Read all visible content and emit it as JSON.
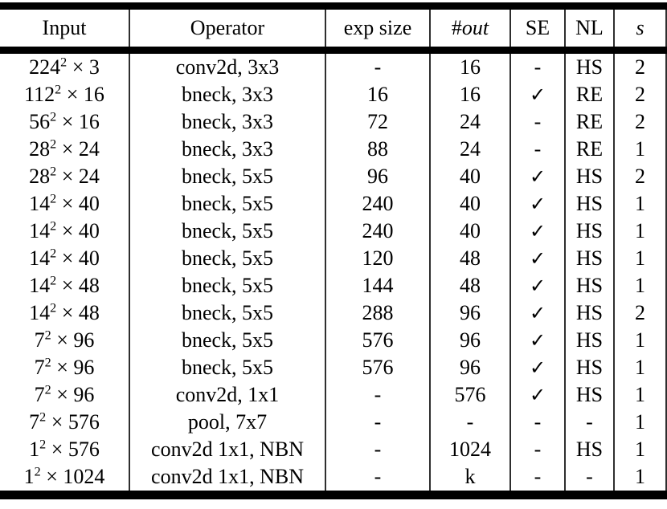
{
  "colors": {
    "background": "#ffffff",
    "text": "#000000",
    "thick_rule": "#000000",
    "divider": "#2e2e2e"
  },
  "icons": {
    "checkmark": "✓"
  },
  "table": {
    "columns": [
      {
        "key": "input",
        "label": "Input",
        "italic": false
      },
      {
        "key": "operator",
        "label": "Operator",
        "italic": false
      },
      {
        "key": "exp_size",
        "label": "exp size",
        "italic": false
      },
      {
        "key": "out",
        "label": "#out",
        "italic": true
      },
      {
        "key": "se",
        "label": "SE",
        "italic": false
      },
      {
        "key": "nl",
        "label": "NL",
        "italic": false
      },
      {
        "key": "s",
        "label": "s",
        "italic": true
      }
    ],
    "rows": [
      {
        "input": "224² × 3",
        "operator": "conv2d, 3x3",
        "exp_size": "-",
        "out": "16",
        "se": "-",
        "nl": "HS",
        "s": "2"
      },
      {
        "input": "112² × 16",
        "operator": "bneck, 3x3",
        "exp_size": "16",
        "out": "16",
        "se": "✓",
        "nl": "RE",
        "s": "2"
      },
      {
        "input": "56² × 16",
        "operator": "bneck, 3x3",
        "exp_size": "72",
        "out": "24",
        "se": "-",
        "nl": "RE",
        "s": "2"
      },
      {
        "input": "28² × 24",
        "operator": "bneck, 3x3",
        "exp_size": "88",
        "out": "24",
        "se": "-",
        "nl": "RE",
        "s": "1"
      },
      {
        "input": "28² × 24",
        "operator": "bneck, 5x5",
        "exp_size": "96",
        "out": "40",
        "se": "✓",
        "nl": "HS",
        "s": "2"
      },
      {
        "input": "14² × 40",
        "operator": "bneck, 5x5",
        "exp_size": "240",
        "out": "40",
        "se": "✓",
        "nl": "HS",
        "s": "1"
      },
      {
        "input": "14² × 40",
        "operator": "bneck, 5x5",
        "exp_size": "240",
        "out": "40",
        "se": "✓",
        "nl": "HS",
        "s": "1"
      },
      {
        "input": "14² × 40",
        "operator": "bneck, 5x5",
        "exp_size": "120",
        "out": "48",
        "se": "✓",
        "nl": "HS",
        "s": "1"
      },
      {
        "input": "14² × 48",
        "operator": "bneck, 5x5",
        "exp_size": "144",
        "out": "48",
        "se": "✓",
        "nl": "HS",
        "s": "1"
      },
      {
        "input": "14² × 48",
        "operator": "bneck, 5x5",
        "exp_size": "288",
        "out": "96",
        "se": "✓",
        "nl": "HS",
        "s": "2"
      },
      {
        "input": "7² × 96",
        "operator": "bneck, 5x5",
        "exp_size": "576",
        "out": "96",
        "se": "✓",
        "nl": "HS",
        "s": "1"
      },
      {
        "input": "7² × 96",
        "operator": "bneck, 5x5",
        "exp_size": "576",
        "out": "96",
        "se": "✓",
        "nl": "HS",
        "s": "1"
      },
      {
        "input": "7² × 96",
        "operator": "conv2d, 1x1",
        "exp_size": "-",
        "out": "576",
        "se": "✓",
        "nl": "HS",
        "s": "1"
      },
      {
        "input": "7² × 576",
        "operator": "pool, 7x7",
        "exp_size": "-",
        "out": "-",
        "se": "-",
        "nl": "-",
        "s": "1"
      },
      {
        "input": "1² × 576",
        "operator": "conv2d 1x1, NBN",
        "exp_size": "-",
        "out": "1024",
        "se": "-",
        "nl": "HS",
        "s": "1"
      },
      {
        "input": "1² × 1024",
        "operator": "conv2d 1x1, NBN",
        "exp_size": "-",
        "out": "k",
        "se": "-",
        "nl": "-",
        "s": "1"
      }
    ]
  }
}
